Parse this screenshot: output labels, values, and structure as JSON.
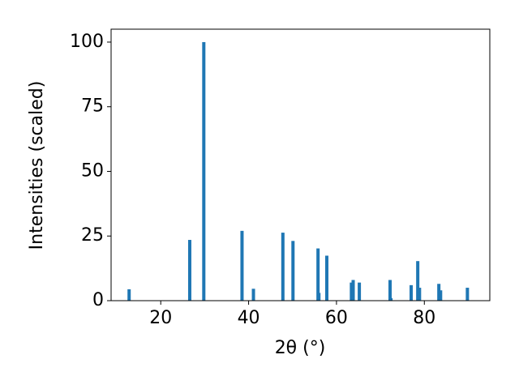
{
  "chart_data": {
    "type": "bar",
    "x_label": "2θ (°)",
    "y_label": "Intensities (scaled)",
    "x": [
      12.8,
      26.6,
      29.8,
      38.5,
      41.1,
      47.8,
      50.1,
      55.8,
      56.0,
      57.8,
      63.4,
      63.8,
      65.2,
      72.2,
      72.4,
      77.0,
      78.5,
      78.9,
      83.3,
      83.7,
      89.8
    ],
    "values": [
      4.4,
      23.5,
      100,
      27,
      4.6,
      26.3,
      23.1,
      20.2,
      3,
      17.4,
      7,
      8,
      7,
      8,
      1,
      6,
      15.3,
      5,
      6.5,
      4,
      5
    ],
    "color": "#1f77b4",
    "xlim": [
      8.7,
      94.9
    ],
    "ylim": [
      0,
      105
    ],
    "xticks": [
      20,
      40,
      60,
      80
    ],
    "yticks": [
      0,
      25,
      50,
      75,
      100
    ],
    "grid": false
  }
}
